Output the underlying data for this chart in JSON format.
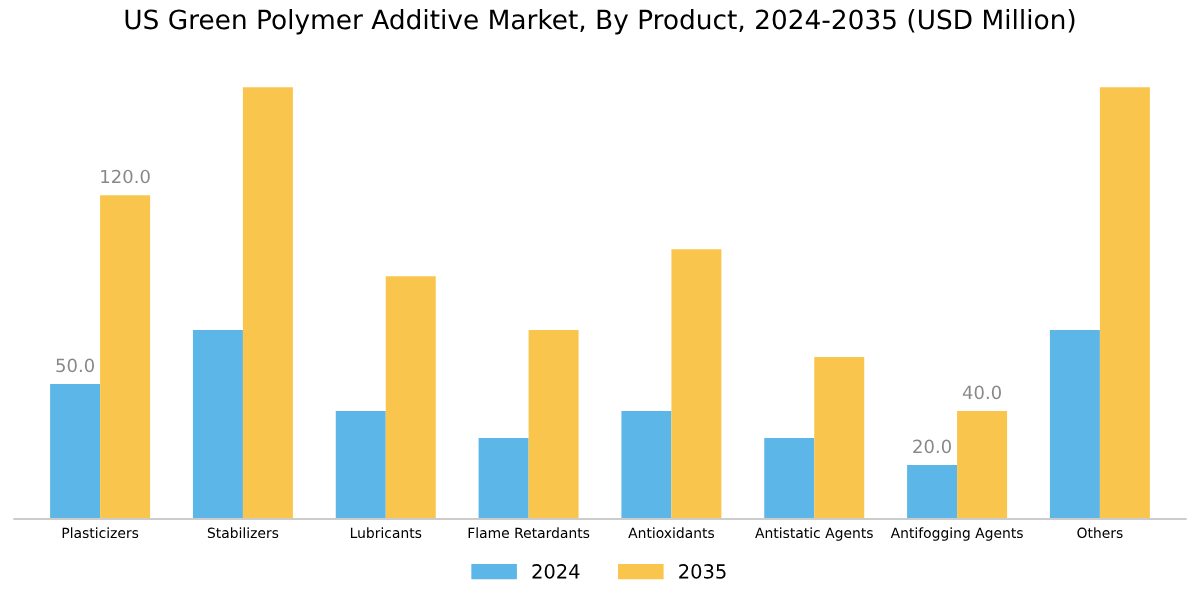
{
  "chart_data": {
    "type": "bar",
    "title": "US Green Polymer Additive Market, By Product, 2024-2035 (USD Million)",
    "categories": [
      "Plasticizers",
      "Stabilizers",
      "Lubricants",
      "Flame Retardants",
      "Antioxidants",
      "Antistatic Agents",
      "Antifogging Agents",
      "Others"
    ],
    "series": [
      {
        "name": "2024",
        "color": "#5db6e8",
        "values": [
          50,
          70,
          40,
          30,
          40,
          30,
          20,
          70
        ],
        "value_labels": [
          "50.0",
          null,
          null,
          null,
          null,
          null,
          "20.0",
          null
        ]
      },
      {
        "name": "2035",
        "color": "#fac54d",
        "values": [
          120,
          160,
          90,
          70,
          100,
          60,
          40,
          160
        ],
        "value_labels": [
          "120.0",
          null,
          null,
          null,
          null,
          null,
          "40.0",
          null
        ]
      }
    ],
    "legend": "bottom",
    "grid": false,
    "tick_labels": "x"
  }
}
